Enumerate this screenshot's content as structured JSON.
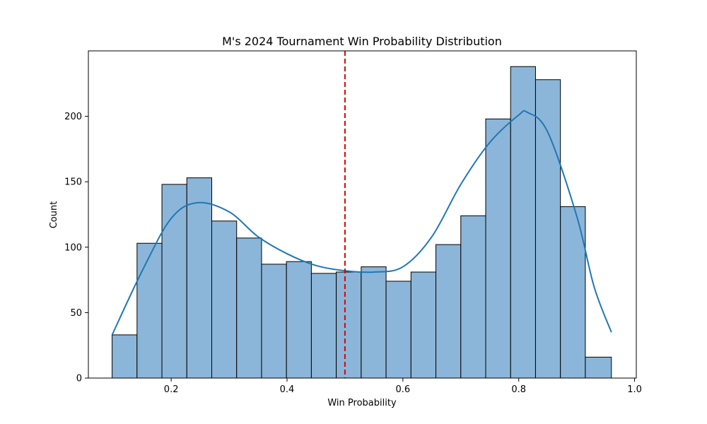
{
  "chart_data": {
    "type": "bar",
    "title": "M's 2024 Tournament Win Probability Distribution",
    "xlabel": "Win Probability",
    "ylabel": "Count",
    "xlim": [
      0.057,
      1.003
    ],
    "ylim": [
      0,
      250
    ],
    "xticks": [
      0.2,
      0.4,
      0.6,
      0.8,
      1.0
    ],
    "xtick_labels": [
      "0.2",
      "0.4",
      "0.6",
      "0.8",
      "1.0"
    ],
    "yticks": [
      0,
      50,
      100,
      150,
      200
    ],
    "ytick_labels": [
      "0",
      "50",
      "100",
      "150",
      "200"
    ],
    "bins": [
      0.098,
      0.141,
      0.184,
      0.227,
      0.27,
      0.313,
      0.356,
      0.399,
      0.442,
      0.485,
      0.528,
      0.571,
      0.614,
      0.657,
      0.7,
      0.743,
      0.786,
      0.829,
      0.872,
      0.915,
      0.96
    ],
    "counts": [
      33,
      103,
      148,
      153,
      120,
      107,
      87,
      89,
      80,
      81,
      85,
      74,
      81,
      102,
      124,
      198,
      238,
      228,
      131,
      16
    ],
    "kde": {
      "x": [
        0.098,
        0.15,
        0.2,
        0.245,
        0.3,
        0.35,
        0.4,
        0.45,
        0.5,
        0.55,
        0.6,
        0.65,
        0.7,
        0.75,
        0.8,
        0.815,
        0.85,
        0.9,
        0.93,
        0.96
      ],
      "y": [
        33,
        82,
        122,
        134,
        127,
        108,
        95,
        86,
        82,
        81,
        85,
        108,
        148,
        180,
        201,
        203,
        188,
        124,
        70,
        35
      ]
    },
    "vline": {
      "x": 0.5,
      "style": "dashed"
    },
    "colors": {
      "bar_fill": "#8cb6d9",
      "bar_edge": "#000000",
      "kde_line": "#1f77b4",
      "vline": "#e00000"
    },
    "grid": false
  }
}
